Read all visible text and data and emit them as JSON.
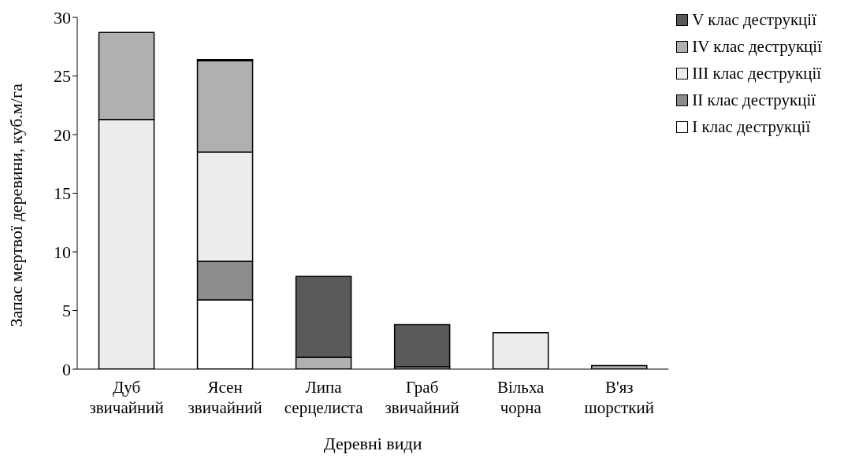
{
  "chart_data": {
    "type": "bar",
    "stacked": true,
    "xlabel": "Деревні види",
    "ylabel": "Запас мертвої деревини, куб.м/га",
    "categories": [
      "Дуб звичайний",
      "Ясен звичайний",
      "Липа серцелиста",
      "Граб звичайний",
      "Вільха чорна",
      "В'яз шорсткий"
    ],
    "series": [
      {
        "name": "I клас деструкції",
        "color": "#ffffff",
        "values": [
          0,
          5.9,
          0,
          0,
          0,
          0
        ]
      },
      {
        "name": "II клас деструкції",
        "color": "#8c8c8c",
        "values": [
          0,
          3.3,
          0,
          0,
          0,
          0
        ]
      },
      {
        "name": "III клас деструкції",
        "color": "#ececec",
        "values": [
          21.3,
          9.3,
          0,
          0,
          3.1,
          0
        ]
      },
      {
        "name": "IV клас деструкції",
        "color": "#b0b0b0",
        "values": [
          7.4,
          7.8,
          1.0,
          0.2,
          0,
          0.3
        ]
      },
      {
        "name": "V клас деструкції",
        "color": "#595959",
        "values": [
          0,
          0.1,
          6.9,
          3.6,
          0,
          0
        ]
      }
    ],
    "ylim": [
      0,
      30
    ],
    "yticks": [
      0,
      5,
      10,
      15,
      20,
      25,
      30
    ],
    "grid": false,
    "legend": "top right"
  }
}
